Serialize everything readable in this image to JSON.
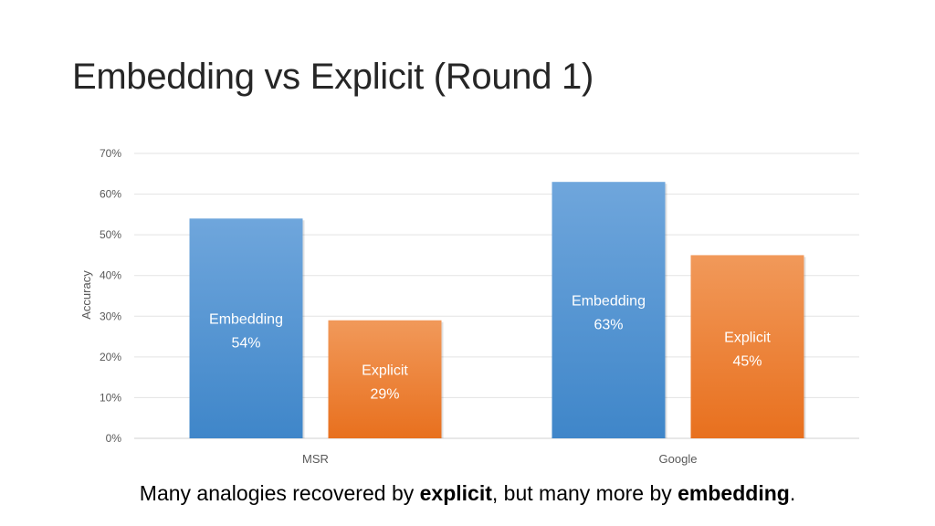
{
  "slide": {
    "title": "Embedding vs Explicit (Round 1)",
    "caption": {
      "part1": "Many analogies recovered by ",
      "bold1": "explicit",
      "part2": ", but many more by ",
      "bold2": "embedding",
      "part3": "."
    }
  },
  "chart_data": {
    "type": "bar",
    "title": "",
    "xlabel": "",
    "ylabel": "Accuracy",
    "ylim": [
      0,
      70
    ],
    "yticks": [
      "0%",
      "10%",
      "20%",
      "30%",
      "40%",
      "50%",
      "60%",
      "70%"
    ],
    "categories": [
      "MSR",
      "Google"
    ],
    "grid": true,
    "legend": "none",
    "series": [
      {
        "name": "Embedding",
        "values": [
          54,
          63
        ],
        "data_labels": [
          "54%",
          "63%"
        ],
        "color_top": "#6fa6dc",
        "color_bottom": "#3f86c9"
      },
      {
        "name": "Explicit",
        "values": [
          29,
          45
        ],
        "data_labels": [
          "29%",
          "45%"
        ],
        "color_top": "#f1995a",
        "color_bottom": "#e8701e"
      }
    ]
  }
}
